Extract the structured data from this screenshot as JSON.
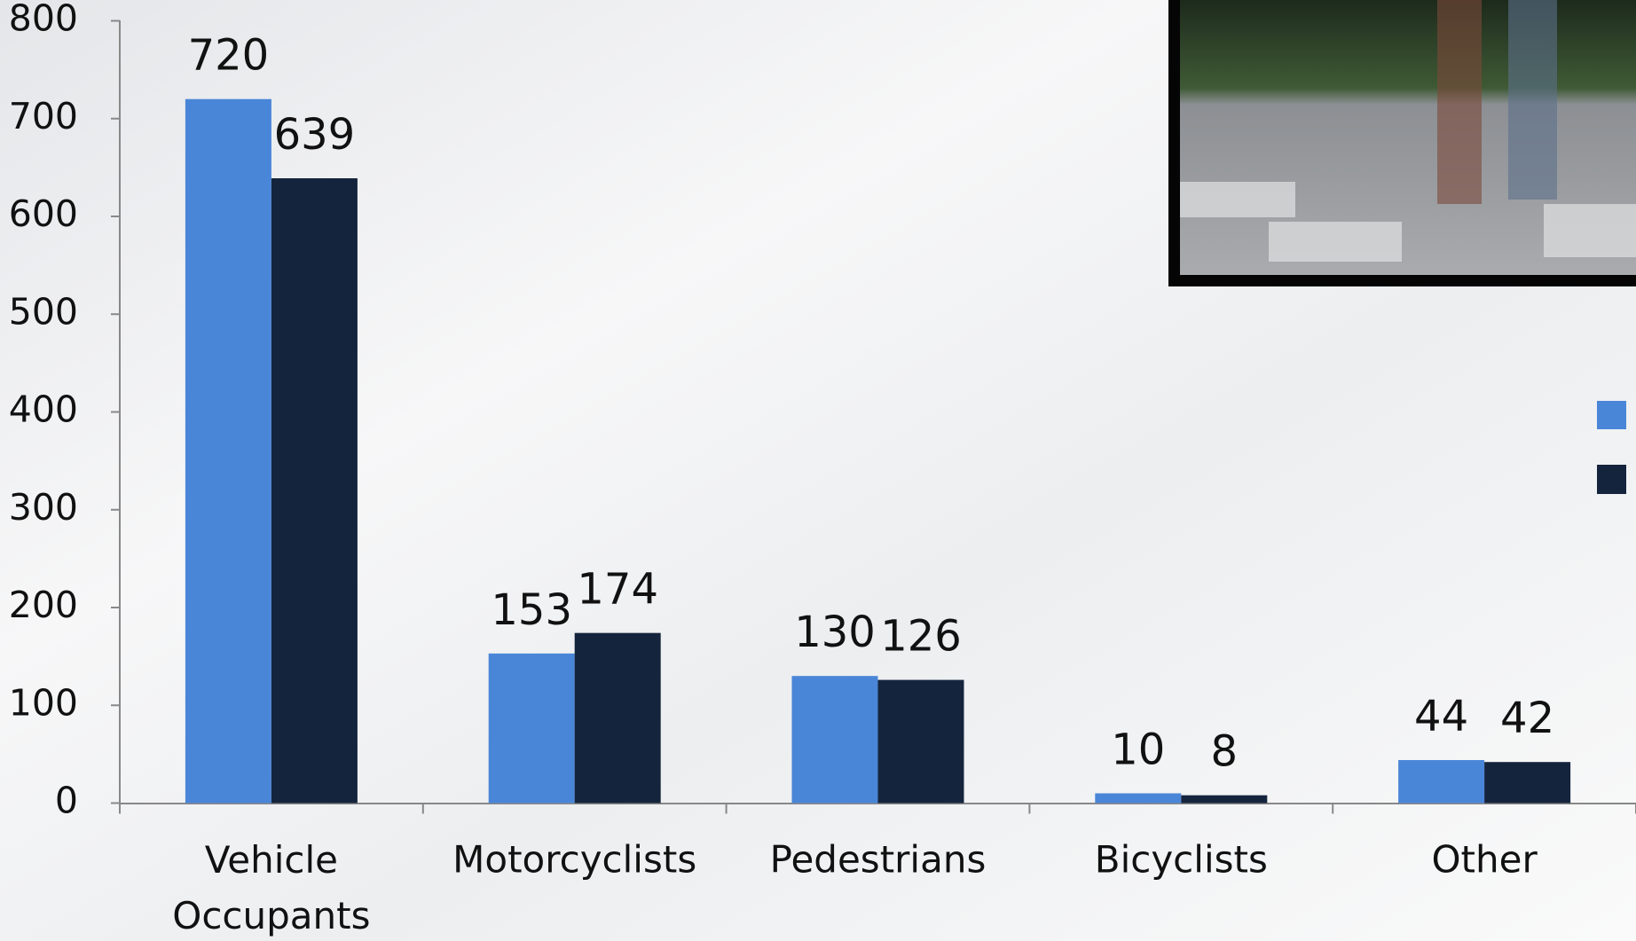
{
  "chart_data": {
    "type": "bar",
    "categories": [
      "Vehicle Occupants",
      "Motorcyclists",
      "Pedestrians",
      "Bicyclists",
      "Other"
    ],
    "series": [
      {
        "color": "#4a86d8",
        "values": [
          720,
          153,
          130,
          10,
          44
        ]
      },
      {
        "color": "#15243d",
        "values": [
          639,
          174,
          126,
          8,
          42
        ]
      }
    ],
    "ylim": [
      0,
      800
    ],
    "yticks": [
      0,
      100,
      200,
      300,
      400,
      500,
      600,
      700,
      800
    ],
    "grid": false
  }
}
